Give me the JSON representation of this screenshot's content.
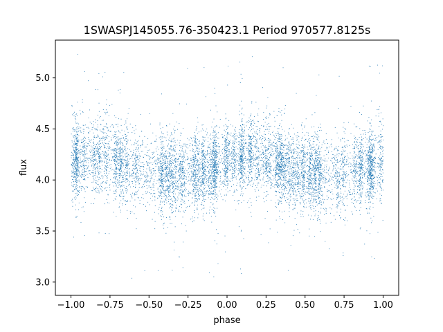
{
  "chart_data": {
    "type": "scatter",
    "title": "1SWASPJ145055.76-350423.1 Period 970577.8125s",
    "xlabel": "phase",
    "ylabel": "flux",
    "xlim": [
      -1.1,
      1.1
    ],
    "ylim": [
      2.87,
      5.37
    ],
    "xticks": [
      -1.0,
      -0.75,
      -0.5,
      -0.25,
      0.0,
      0.25,
      0.5,
      0.75,
      1.0
    ],
    "xtick_labels": [
      "−1.00",
      "−0.75",
      "−0.50",
      "−0.25",
      "0.00",
      "0.25",
      "0.50",
      "0.75",
      "1.00"
    ],
    "yticks": [
      3.0,
      3.5,
      4.0,
      4.5,
      5.0
    ],
    "ytick_labels": [
      "3.0",
      "3.5",
      "4.0",
      "4.5",
      "5.0"
    ],
    "grid": false,
    "marker_color": "#1f77b4",
    "series": [
      {
        "x_range": [
          -1.0,
          1.0
        ],
        "y_range": [
          3.0,
          5.3
        ],
        "profile": {
          "phase": [
            -1.0,
            -0.9,
            -0.8,
            -0.7,
            -0.6,
            -0.5,
            -0.4,
            -0.3,
            -0.2,
            -0.1,
            0.0,
            0.1,
            0.2,
            0.3,
            0.4,
            0.5,
            0.6,
            0.7,
            0.8,
            0.9,
            1.0
          ],
          "median_flux": [
            4.2,
            4.22,
            4.25,
            4.18,
            4.12,
            4.08,
            4.06,
            4.05,
            4.08,
            4.12,
            4.2,
            4.22,
            4.25,
            4.18,
            4.12,
            4.08,
            4.06,
            4.05,
            4.08,
            4.12,
            4.2
          ],
          "scatter": 0.18
        }
      }
    ]
  }
}
